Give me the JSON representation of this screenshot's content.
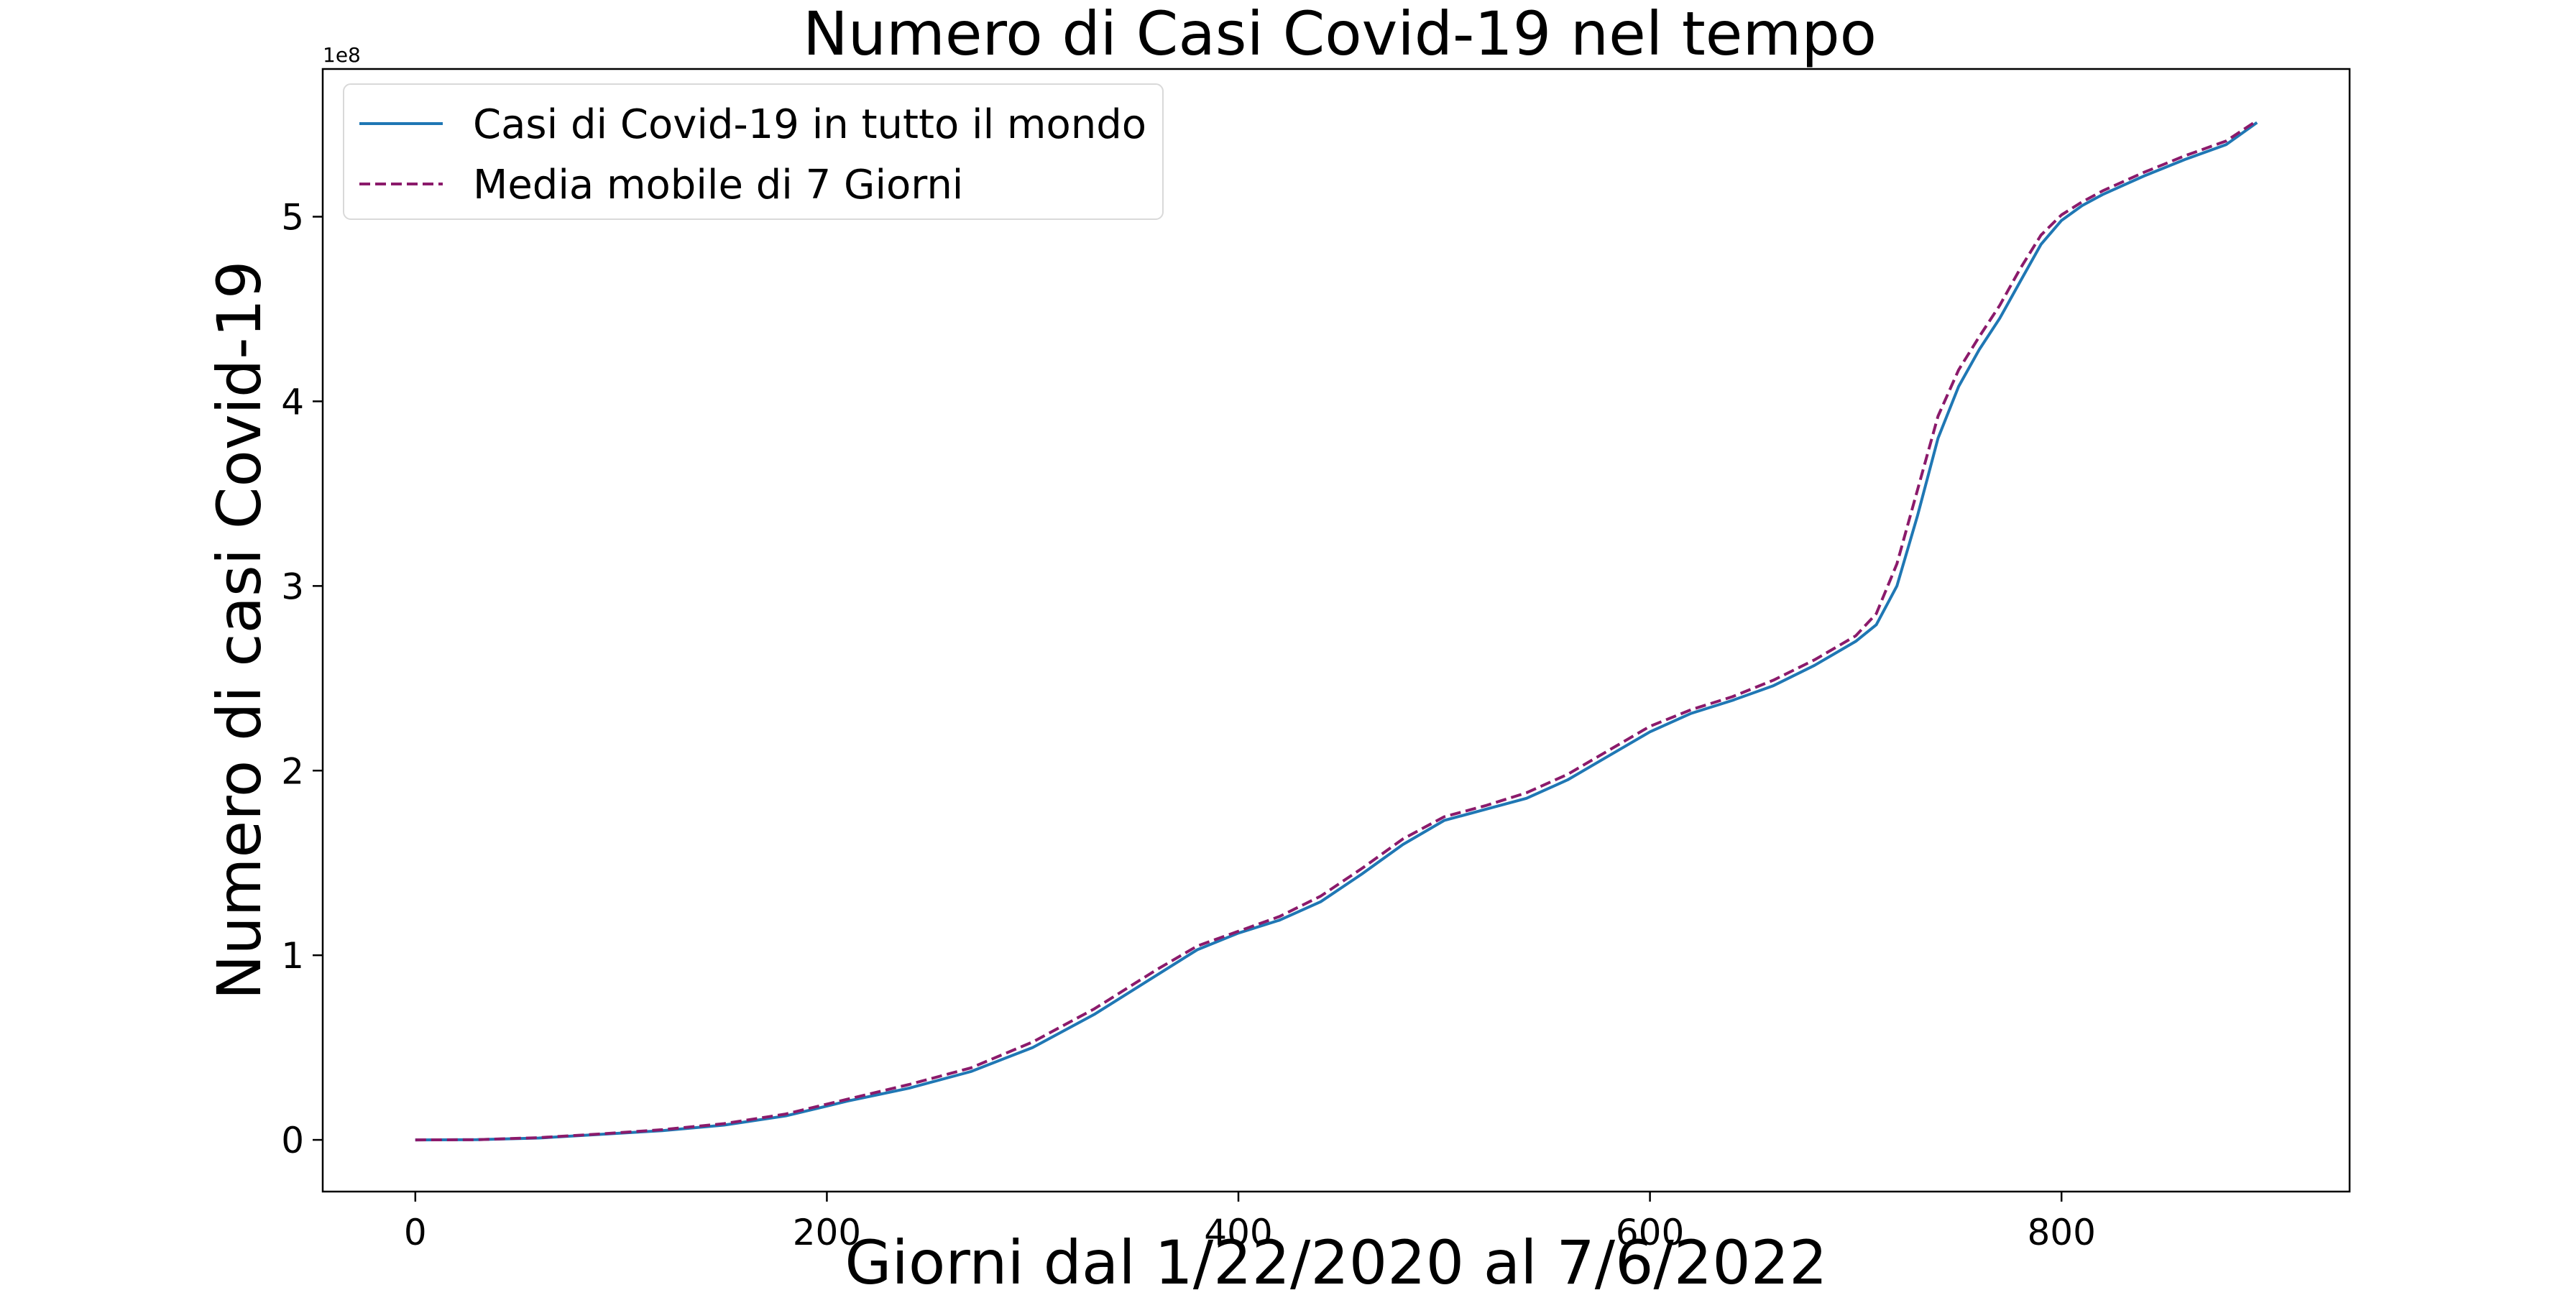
{
  "chart_data": {
    "type": "line",
    "title": "Numero di Casi Covid-19 nel tempo",
    "xlabel": "Giorni dal 1/22/2020 al 7/6/2022",
    "ylabel": "Numero di casi Covid-19",
    "y_offset_text": "1e8",
    "xlim": [
      -45,
      940
    ],
    "ylim": [
      -0.28,
      5.8
    ],
    "x_ticks": [
      0,
      200,
      400,
      600,
      800
    ],
    "x_tick_labels": [
      "0",
      "200",
      "400",
      "600",
      "800"
    ],
    "y_ticks": [
      0,
      1,
      2,
      3,
      4,
      5
    ],
    "y_tick_labels": [
      "0",
      "1",
      "2",
      "3",
      "4",
      "5"
    ],
    "legend_position": "top-left",
    "grid": false,
    "y_unit_multiplier": 100000000,
    "series": [
      {
        "name": "Casi di Covid-19 in tutto il mondo",
        "color": "#1f77b4",
        "style": "solid",
        "x": [
          0,
          30,
          60,
          90,
          120,
          150,
          180,
          210,
          240,
          270,
          300,
          330,
          360,
          380,
          400,
          420,
          440,
          460,
          480,
          500,
          520,
          540,
          560,
          580,
          600,
          620,
          640,
          660,
          680,
          700,
          710,
          720,
          730,
          740,
          750,
          760,
          770,
          780,
          790,
          800,
          810,
          820,
          840,
          860,
          880,
          895
        ],
        "y": [
          0,
          0.001,
          0.01,
          0.03,
          0.05,
          0.08,
          0.13,
          0.21,
          0.28,
          0.37,
          0.5,
          0.68,
          0.89,
          1.03,
          1.12,
          1.19,
          1.29,
          1.44,
          1.6,
          1.73,
          1.79,
          1.85,
          1.95,
          2.08,
          2.21,
          2.31,
          2.38,
          2.46,
          2.57,
          2.7,
          2.79,
          3.0,
          3.38,
          3.8,
          4.08,
          4.28,
          4.45,
          4.65,
          4.85,
          4.98,
          5.06,
          5.12,
          5.22,
          5.31,
          5.39,
          5.51
        ]
      },
      {
        "name": "Media mobile di 7 Giorni",
        "color": "#8b1a6b",
        "style": "dashed",
        "x": [
          0,
          30,
          60,
          90,
          120,
          150,
          180,
          210,
          240,
          270,
          300,
          330,
          360,
          380,
          400,
          420,
          440,
          460,
          480,
          500,
          520,
          540,
          560,
          580,
          600,
          620,
          640,
          660,
          680,
          700,
          710,
          720,
          730,
          740,
          750,
          760,
          770,
          780,
          790,
          800,
          810,
          820,
          840,
          860,
          880,
          895
        ],
        "y": [
          0,
          0.001,
          0.012,
          0.032,
          0.055,
          0.088,
          0.14,
          0.22,
          0.3,
          0.39,
          0.53,
          0.71,
          0.92,
          1.05,
          1.13,
          1.21,
          1.32,
          1.47,
          1.63,
          1.75,
          1.81,
          1.88,
          1.98,
          2.11,
          2.24,
          2.33,
          2.4,
          2.49,
          2.6,
          2.73,
          2.85,
          3.12,
          3.52,
          3.92,
          4.17,
          4.35,
          4.52,
          4.72,
          4.9,
          5.01,
          5.08,
          5.14,
          5.24,
          5.33,
          5.41,
          5.52
        ]
      }
    ]
  }
}
